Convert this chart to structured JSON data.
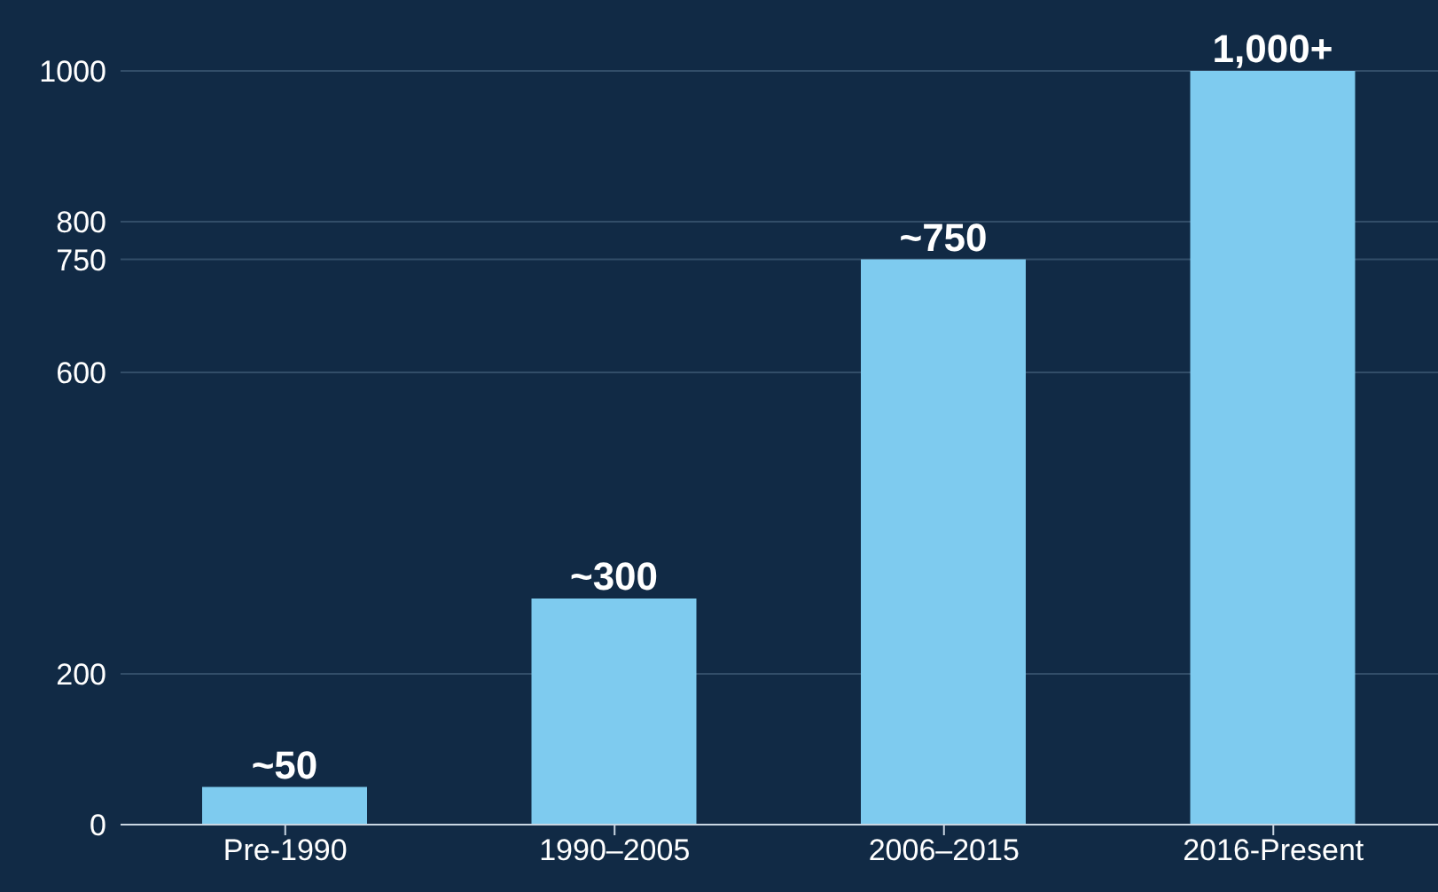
{
  "chart_data": {
    "type": "bar",
    "categories": [
      "Pre-1990",
      "1990–2005",
      "2006–2015",
      "2016-Present"
    ],
    "values": [
      50,
      300,
      750,
      1000
    ],
    "value_labels": [
      "~50",
      "~300",
      "~750",
      "1,000+"
    ],
    "color": "#7ecbef",
    "ylim": [
      0,
      1000
    ],
    "yticks": [
      0,
      200,
      600,
      750,
      800,
      1000
    ],
    "grid": "y"
  }
}
